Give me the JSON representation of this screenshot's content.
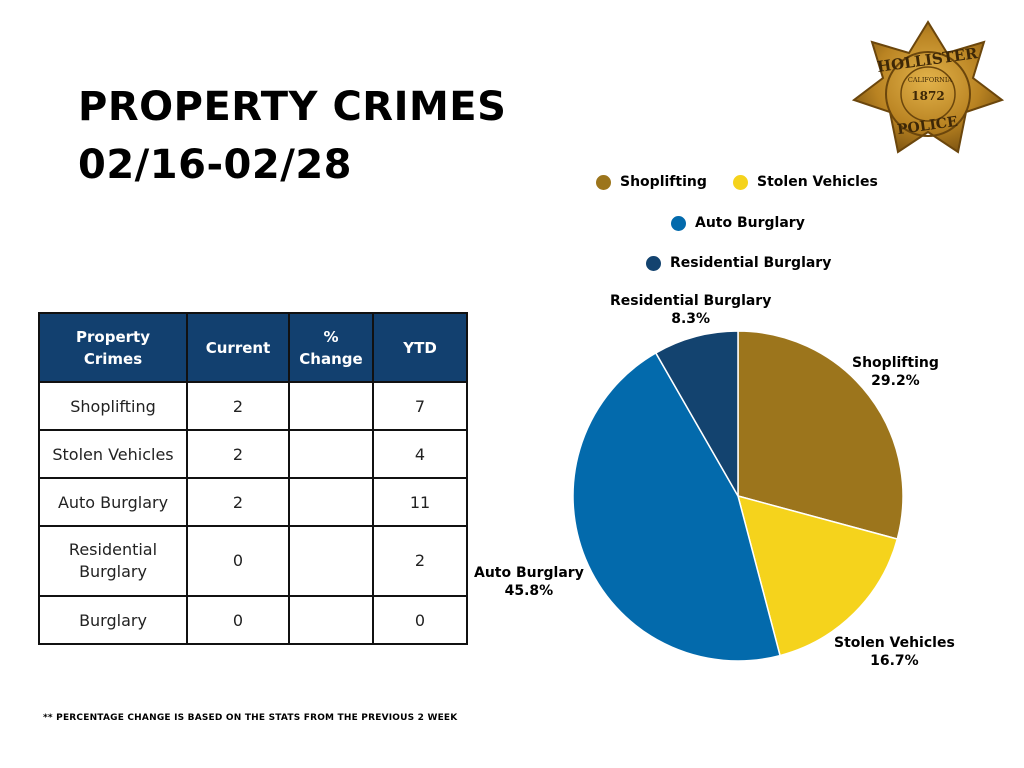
{
  "title_line1": "PROPERTY CRIMES",
  "title_line2": "02/16-02/28",
  "badge": {
    "top_text": "HOLLISTER",
    "state_text": "CALIFORNIA",
    "year_text": "1872",
    "bottom_text": "POLICE"
  },
  "table": {
    "headers": [
      "Property Crimes",
      "Current",
      "% Change",
      "YTD"
    ],
    "rows": [
      {
        "crime": "Shoplifting",
        "current": "2",
        "change": "",
        "ytd": "7"
      },
      {
        "crime": "Stolen Vehicles",
        "current": "2",
        "change": "",
        "ytd": "4"
      },
      {
        "crime": "Auto Burglary",
        "current": "2",
        "change": "",
        "ytd": "11"
      },
      {
        "crime": "Residential Burglary",
        "current": "0",
        "change": "",
        "ytd": "2"
      },
      {
        "crime": "Burglary",
        "current": "0",
        "change": "",
        "ytd": "0"
      }
    ]
  },
  "footnote": "** PERCENTAGE CHANGE IS BASED ON THE STATS FROM THE PREVIOUS 2 WEEK",
  "chart_data": {
    "type": "pie",
    "categories": [
      "Shoplifting",
      "Stolen Vehicles",
      "Auto Burglary",
      "Residential Burglary"
    ],
    "values": [
      29.2,
      16.7,
      45.8,
      8.3
    ],
    "labels": [
      "29.2%",
      "16.7%",
      "45.8%",
      "8.3%"
    ],
    "colors": [
      "#9c751c",
      "#f5d31c",
      "#036aac",
      "#13436f"
    ],
    "legend": [
      {
        "name": "Shoplifting",
        "color": "#9c751c"
      },
      {
        "name": "Stolen Vehicles",
        "color": "#f5d31c"
      },
      {
        "name": "Auto Burglary",
        "color": "#036aac"
      },
      {
        "name": "Residential Burglary",
        "color": "#13436f"
      }
    ]
  }
}
